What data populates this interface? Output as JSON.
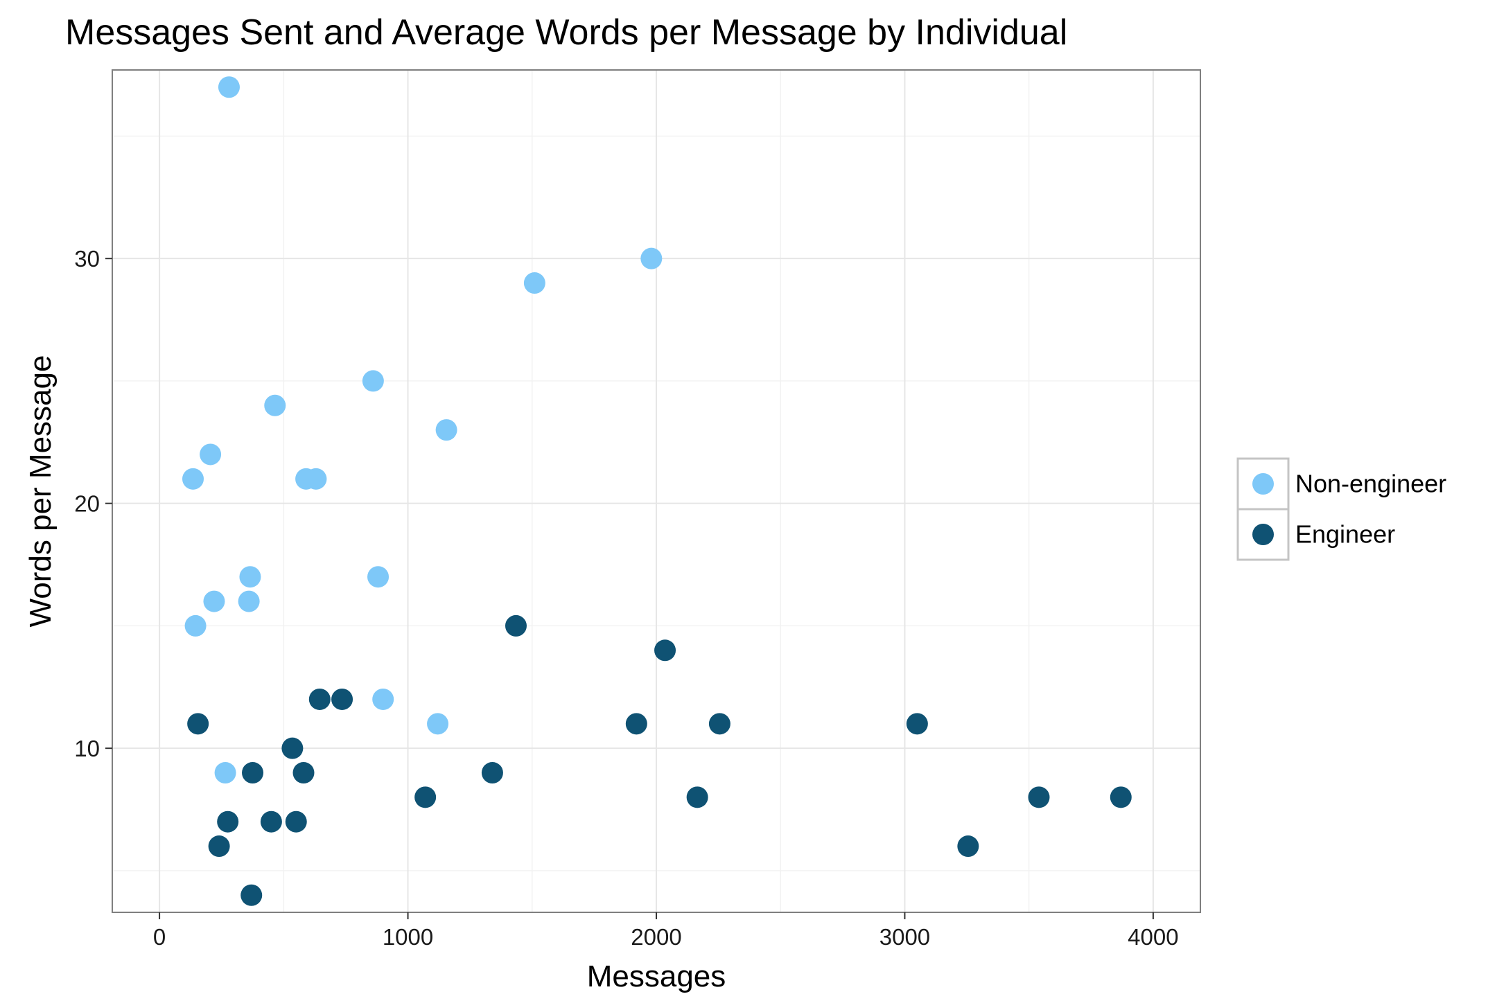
{
  "chart_data": {
    "type": "scatter",
    "title": "Messages Sent and Average Words per Message by Individual",
    "xlabel": "Messages",
    "ylabel": "Words per Message",
    "xlim": [
      -190,
      4190
    ],
    "ylim": [
      3.3,
      37.7
    ],
    "x_ticks": [
      0,
      1000,
      2000,
      3000,
      4000
    ],
    "x_tick_labels": [
      "0",
      "1000",
      "2000",
      "3000",
      "4000"
    ],
    "y_ticks": [
      10,
      20,
      30
    ],
    "y_tick_labels": [
      "10",
      "20",
      "30"
    ],
    "grid": true,
    "legend_position": "right",
    "series": [
      {
        "name": "Non-engineer",
        "color": "#7ec8f8",
        "points": [
          {
            "x": 280,
            "y": 37
          },
          {
            "x": 1980,
            "y": 30
          },
          {
            "x": 1510,
            "y": 29
          },
          {
            "x": 860,
            "y": 25
          },
          {
            "x": 465,
            "y": 24
          },
          {
            "x": 1155,
            "y": 23
          },
          {
            "x": 205,
            "y": 22
          },
          {
            "x": 135,
            "y": 21
          },
          {
            "x": 590,
            "y": 21
          },
          {
            "x": 630,
            "y": 21
          },
          {
            "x": 365,
            "y": 17
          },
          {
            "x": 880,
            "y": 17
          },
          {
            "x": 220,
            "y": 16
          },
          {
            "x": 360,
            "y": 16
          },
          {
            "x": 145,
            "y": 15
          },
          {
            "x": 900,
            "y": 12
          },
          {
            "x": 1120,
            "y": 11
          },
          {
            "x": 265,
            "y": 9
          }
        ]
      },
      {
        "name": "Engineer",
        "color": "#0f5273",
        "points": [
          {
            "x": 1435,
            "y": 15
          },
          {
            "x": 2035,
            "y": 14
          },
          {
            "x": 645,
            "y": 12
          },
          {
            "x": 735,
            "y": 12
          },
          {
            "x": 155,
            "y": 11
          },
          {
            "x": 1920,
            "y": 11
          },
          {
            "x": 2255,
            "y": 11
          },
          {
            "x": 3050,
            "y": 11
          },
          {
            "x": 535,
            "y": 10
          },
          {
            "x": 375,
            "y": 9
          },
          {
            "x": 580,
            "y": 9
          },
          {
            "x": 1340,
            "y": 9
          },
          {
            "x": 1070,
            "y": 8
          },
          {
            "x": 2165,
            "y": 8
          },
          {
            "x": 3540,
            "y": 8
          },
          {
            "x": 3870,
            "y": 8
          },
          {
            "x": 275,
            "y": 7
          },
          {
            "x": 450,
            "y": 7
          },
          {
            "x": 550,
            "y": 7
          },
          {
            "x": 240,
            "y": 6
          },
          {
            "x": 3255,
            "y": 6
          },
          {
            "x": 370,
            "y": 4
          }
        ]
      }
    ]
  },
  "colors": {
    "panel_border": "#7f7f7f",
    "grid_major": "#e6e6e6",
    "grid_minor": "#f2f2f2",
    "legend_border": "#c4c4c4"
  }
}
